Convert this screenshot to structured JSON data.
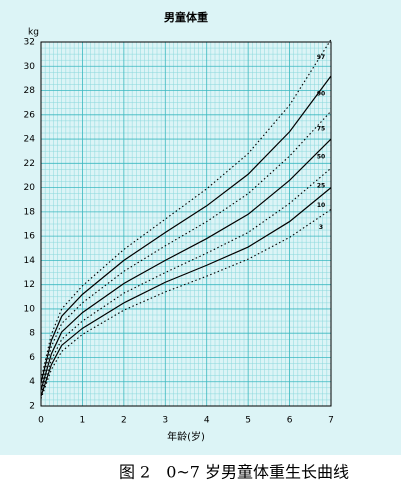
{
  "chart_data": {
    "type": "line",
    "title": "男童体重",
    "y_label": "kg",
    "x_label": "年龄(岁)",
    "caption": "图 2　0~7 岁男童体重生长曲线",
    "x": [
      0,
      0.25,
      0.5,
      1,
      2,
      3,
      4,
      5,
      6,
      7
    ],
    "series": [
      {
        "name": "97",
        "color": "#000000",
        "style": "dotted",
        "values": [
          4.2,
          7.9,
          10.0,
          11.9,
          14.9,
          17.4,
          19.9,
          22.8,
          26.8,
          32.2
        ]
      },
      {
        "name": "90",
        "color": "#000000",
        "style": "solid",
        "values": [
          3.9,
          7.4,
          9.4,
          11.2,
          14.0,
          16.3,
          18.5,
          21.1,
          24.6,
          29.2
        ]
      },
      {
        "name": "75",
        "color": "#000000",
        "style": "dotted",
        "values": [
          3.6,
          6.9,
          8.8,
          10.5,
          13.1,
          15.2,
          17.2,
          19.5,
          22.6,
          26.3
        ]
      },
      {
        "name": "50",
        "color": "#000000",
        "style": "solid",
        "values": [
          3.3,
          6.3,
          8.1,
          9.7,
          12.1,
          14.0,
          15.8,
          17.8,
          20.6,
          24.0
        ]
      },
      {
        "name": "25",
        "color": "#000000",
        "style": "dotted",
        "values": [
          3.0,
          5.8,
          7.5,
          9.0,
          11.3,
          13.0,
          14.6,
          16.3,
          18.7,
          21.6
        ]
      },
      {
        "name": "10",
        "color": "#000000",
        "style": "solid",
        "values": [
          2.8,
          5.4,
          7.0,
          8.4,
          10.5,
          12.2,
          13.6,
          15.1,
          17.2,
          20.0
        ]
      },
      {
        "name": "3",
        "color": "#000000",
        "style": "dotted",
        "values": [
          2.6,
          5.0,
          6.5,
          7.9,
          9.9,
          11.4,
          12.7,
          14.1,
          15.9,
          18.2
        ]
      }
    ],
    "xlim": [
      0,
      7
    ],
    "xticks": [
      0,
      1,
      2,
      3,
      4,
      5,
      6,
      7
    ],
    "ylim": [
      2,
      32
    ],
    "yticks": [
      2,
      4,
      6,
      8,
      10,
      12,
      14,
      16,
      18,
      20,
      22,
      24,
      26,
      28,
      30,
      32
    ],
    "grid": true,
    "minor_grid": true
  }
}
